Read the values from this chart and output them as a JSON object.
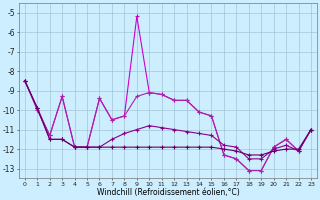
{
  "xlabel": "Windchill (Refroidissement éolien,°C)",
  "hours": [
    0,
    1,
    2,
    3,
    4,
    5,
    6,
    7,
    8,
    9,
    10,
    11,
    12,
    13,
    14,
    15,
    16,
    17,
    18,
    19,
    20,
    21,
    22,
    23
  ],
  "series1": [
    -8.5,
    -10.0,
    -11.3,
    -9.3,
    -11.9,
    -11.9,
    -9.4,
    -10.5,
    -10.3,
    -5.2,
    -9.1,
    -9.2,
    -9.5,
    -9.5,
    -10.1,
    -10.3,
    -12.3,
    -12.5,
    -13.1,
    -13.1,
    -11.9,
    -11.5,
    -12.1,
    -11.0
  ],
  "series2": [
    -8.5,
    -9.9,
    -11.3,
    -9.3,
    -11.9,
    -11.9,
    -9.4,
    -10.5,
    -10.3,
    -9.3,
    -9.1,
    -9.2,
    -9.5,
    -9.5,
    -10.1,
    -10.3,
    -12.3,
    -12.5,
    -13.1,
    -13.1,
    -11.9,
    -11.5,
    -12.1,
    -11.0
  ],
  "series3": [
    -8.5,
    -9.9,
    -11.5,
    -11.5,
    -11.9,
    -11.9,
    -11.9,
    -11.5,
    -11.2,
    -11.0,
    -10.8,
    -10.9,
    -11.0,
    -11.1,
    -11.2,
    -11.3,
    -11.8,
    -11.9,
    -12.5,
    -12.5,
    -12.0,
    -11.8,
    -12.1,
    -11.0
  ],
  "series4": [
    -8.5,
    -9.9,
    -11.5,
    -11.5,
    -11.9,
    -11.9,
    -11.9,
    -11.9,
    -11.9,
    -11.9,
    -11.9,
    -11.9,
    -11.9,
    -11.9,
    -11.9,
    -11.9,
    -12.0,
    -12.1,
    -12.3,
    -12.3,
    -12.1,
    -12.0,
    -12.0,
    -11.0
  ],
  "color1": "#cc00cc",
  "color2": "#aa22aa",
  "color3": "#880088",
  "color4": "#660066",
  "bg_color": "#cceeff",
  "grid_color": "#99bbcc",
  "ylim": [
    -13.5,
    -4.5
  ],
  "yticks": [
    -13,
    -12,
    -11,
    -10,
    -9,
    -8,
    -7,
    -6,
    -5
  ]
}
